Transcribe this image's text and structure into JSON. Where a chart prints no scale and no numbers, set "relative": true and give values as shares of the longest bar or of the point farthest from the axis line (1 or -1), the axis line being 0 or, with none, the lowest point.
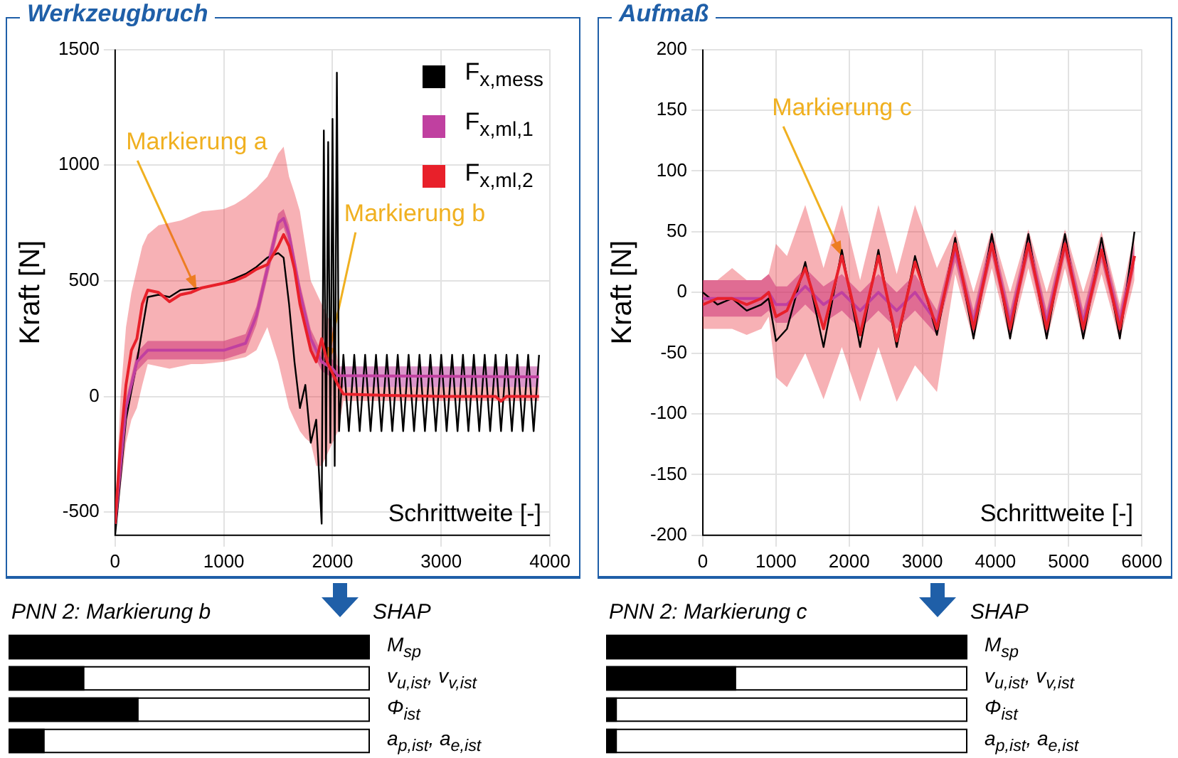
{
  "chart_data": [
    {
      "type": "line",
      "title": "Werkzeugbruch",
      "xlabel": "Schrittweite [-]",
      "ylabel": "Kraft [N]",
      "xlim": [
        0,
        4000
      ],
      "ylim": [
        -600,
        1500
      ],
      "xticks": [
        0,
        1000,
        2000,
        3000,
        4000
      ],
      "yticks": [
        -500,
        0,
        500,
        1000,
        1500
      ],
      "grid": true,
      "legend": "top right",
      "annotations": [
        {
          "text": "Markierung a",
          "x": 750,
          "y": 460
        },
        {
          "text": "Markierung b",
          "x": 1950,
          "y": 150
        }
      ],
      "series": [
        {
          "name": "F$_{x,mess}$",
          "color": "#000000",
          "x": [
            0,
            100,
            200,
            300,
            400,
            500,
            600,
            800,
            1000,
            1200,
            1300,
            1400,
            1500,
            1550,
            1600,
            1650,
            1700,
            1750,
            1800,
            1850,
            1900,
            1920,
            1940,
            1960,
            1980,
            2000,
            2020,
            2040,
            2060,
            2100,
            2150,
            2200,
            2250,
            2300,
            2350,
            2400,
            2450,
            2500,
            2550,
            2600,
            2650,
            2700,
            2750,
            2800,
            2850,
            2900,
            2950,
            3000,
            3050,
            3100,
            3150,
            3200,
            3250,
            3300,
            3350,
            3400,
            3450,
            3500,
            3550,
            3600,
            3650,
            3700,
            3750,
            3800,
            3850,
            3900
          ],
          "values": [
            -600,
            -100,
            150,
            430,
            440,
            430,
            460,
            470,
            490,
            530,
            560,
            600,
            620,
            600,
            400,
            150,
            -50,
            50,
            -200,
            -100,
            -550,
            1150,
            -300,
            1100,
            -200,
            1200,
            -300,
            1400,
            -150,
            180,
            -150,
            180,
            -150,
            180,
            -150,
            180,
            -150,
            180,
            -150,
            180,
            -150,
            180,
            -150,
            180,
            -150,
            180,
            -150,
            180,
            -150,
            180,
            -150,
            180,
            -150,
            180,
            -150,
            180,
            -150,
            180,
            -150,
            180,
            -150,
            180,
            -150,
            180,
            -150,
            180
          ]
        },
        {
          "name": "F$_{x,ml,1}$",
          "color": "#c040a0",
          "x": [
            0,
            100,
            200,
            300,
            500,
            1000,
            1200,
            1300,
            1400,
            1500,
            1550,
            1600,
            1700,
            1800,
            1900,
            2000,
            2050,
            3900
          ],
          "values": [
            -550,
            -50,
            150,
            200,
            200,
            200,
            230,
            350,
            550,
            750,
            770,
            700,
            450,
            250,
            150,
            120,
            90,
            85
          ],
          "lower": [
            -590,
            -90,
            110,
            160,
            160,
            160,
            190,
            310,
            510,
            710,
            730,
            660,
            410,
            210,
            110,
            80,
            40,
            40
          ],
          "upper": [
            -510,
            -10,
            190,
            240,
            240,
            240,
            270,
            390,
            590,
            790,
            810,
            740,
            490,
            290,
            190,
            160,
            130,
            130
          ]
        },
        {
          "name": "F$_{x,ml,2}$",
          "color": "#e8202a",
          "x": [
            0,
            50,
            100,
            150,
            200,
            250,
            300,
            400,
            500,
            600,
            700,
            800,
            900,
            1000,
            1100,
            1200,
            1300,
            1400,
            1500,
            1550,
            1600,
            1650,
            1700,
            1750,
            1800,
            1850,
            1900,
            1950,
            2000,
            2050,
            2100,
            2500,
            3000,
            3500,
            3550,
            3600,
            3900
          ],
          "values": [
            -550,
            -200,
            50,
            200,
            250,
            400,
            460,
            450,
            410,
            440,
            450,
            470,
            480,
            490,
            500,
            520,
            550,
            570,
            650,
            700,
            650,
            550,
            400,
            300,
            200,
            150,
            250,
            150,
            100,
            50,
            10,
            5,
            0,
            0,
            -20,
            0,
            0
          ],
          "lower": [
            -600,
            -400,
            -200,
            -100,
            -50,
            50,
            140,
            130,
            120,
            130,
            140,
            140,
            145,
            150,
            160,
            170,
            200,
            300,
            150,
            50,
            -50,
            -100,
            -150,
            -180,
            -200,
            -300,
            -300,
            -250,
            -200,
            -150,
            -20,
            -20,
            -20,
            -20,
            -20,
            -20,
            -20
          ],
          "upper": [
            -500,
            0,
            300,
            450,
            550,
            650,
            700,
            740,
            750,
            760,
            780,
            800,
            805,
            810,
            830,
            860,
            900,
            950,
            1050,
            1080,
            950,
            880,
            800,
            650,
            500,
            450,
            400,
            350,
            300,
            150,
            40,
            40,
            40,
            40,
            40,
            40,
            40
          ]
        }
      ]
    },
    {
      "type": "line",
      "title": "Aufmaß",
      "xlabel": "Schrittweite [-]",
      "ylabel": "Kraft [N]",
      "xlim": [
        0,
        6000
      ],
      "ylim": [
        -200,
        200
      ],
      "xticks": [
        0,
        1000,
        2000,
        3000,
        4000,
        5000,
        6000
      ],
      "yticks": [
        -200,
        -150,
        -100,
        -50,
        0,
        50,
        100,
        150,
        200
      ],
      "grid": true,
      "annotations": [
        {
          "text": "Markierung c",
          "x": 1900,
          "y": 30
        }
      ],
      "x": [
        0,
        200,
        400,
        600,
        800,
        900,
        1000,
        1150,
        1400,
        1650,
        1900,
        2150,
        2400,
        2650,
        2900,
        3200,
        3450,
        3700,
        3950,
        4200,
        4450,
        4700,
        4950,
        5200,
        5450,
        5700,
        5900
      ],
      "series": [
        {
          "color": "#000000",
          "values": [
            0,
            -10,
            -5,
            -15,
            -10,
            -5,
            -40,
            -30,
            25,
            -45,
            35,
            -45,
            35,
            -45,
            30,
            -35,
            45,
            -38,
            48,
            -38,
            48,
            -38,
            48,
            -38,
            45,
            -38,
            50
          ]
        },
        {
          "color": "#c040a0",
          "values": [
            -5,
            -5,
            -5,
            -5,
            -5,
            0,
            -10,
            -10,
            5,
            -10,
            0,
            -15,
            0,
            -15,
            0,
            -25,
            35,
            -25,
            40,
            -25,
            40,
            -25,
            40,
            -25,
            35,
            -25,
            30
          ],
          "lower": [
            -20,
            -20,
            -20,
            -20,
            -20,
            -15,
            -25,
            -25,
            -10,
            -25,
            -15,
            -30,
            -15,
            -30,
            -15,
            -35,
            25,
            -35,
            30,
            -35,
            30,
            -35,
            30,
            -35,
            25,
            -35,
            20
          ],
          "upper": [
            10,
            10,
            10,
            10,
            10,
            15,
            5,
            5,
            20,
            5,
            15,
            0,
            15,
            0,
            15,
            -15,
            45,
            -15,
            50,
            -15,
            50,
            -15,
            50,
            -15,
            45,
            -15,
            40
          ]
        },
        {
          "color": "#e8202a",
          "values": [
            -10,
            -5,
            -5,
            -10,
            -5,
            0,
            -20,
            -15,
            20,
            -30,
            30,
            -35,
            30,
            -40,
            25,
            -30,
            40,
            -30,
            40,
            -30,
            40,
            -30,
            40,
            -30,
            35,
            -30,
            30
          ],
          "lower": [
            -30,
            -30,
            -30,
            -35,
            -30,
            -20,
            -70,
            -78,
            -50,
            -88,
            -45,
            -90,
            -45,
            -90,
            -60,
            -82,
            15,
            -40,
            20,
            -40,
            20,
            -40,
            20,
            -40,
            15,
            -40,
            10
          ],
          "upper": [
            10,
            10,
            20,
            10,
            10,
            15,
            40,
            30,
            72,
            20,
            72,
            10,
            72,
            15,
            72,
            20,
            52,
            0,
            52,
            0,
            52,
            0,
            52,
            0,
            50,
            -10,
            50
          ]
        }
      ]
    },
    {
      "type": "bar",
      "orientation": "horizontal",
      "relative": true,
      "title": "PNN 2: Markierung b",
      "subtitle": "SHAP",
      "categories": [
        "M$_{sp}$",
        "v$_{u,ist}$, v$_{v,ist}$",
        "Φ$_{ist}$",
        "a$_{p,ist}$, a$_{e,ist}$"
      ],
      "values": [
        1,
        0.21,
        0.36,
        0.1
      ],
      "color": "#000000"
    },
    {
      "type": "bar",
      "orientation": "horizontal",
      "relative": true,
      "title": "PNN 2: Markierung c",
      "subtitle": "SHAP",
      "categories": [
        "M$_{sp}$",
        "v$_{u,ist}$, v$_{v,ist}$",
        "Φ$_{ist}$",
        "a$_{p,ist}$, a$_{e,ist}$"
      ],
      "values": [
        1,
        0.36,
        0.03,
        0.03
      ],
      "color": "#000000"
    }
  ]
}
